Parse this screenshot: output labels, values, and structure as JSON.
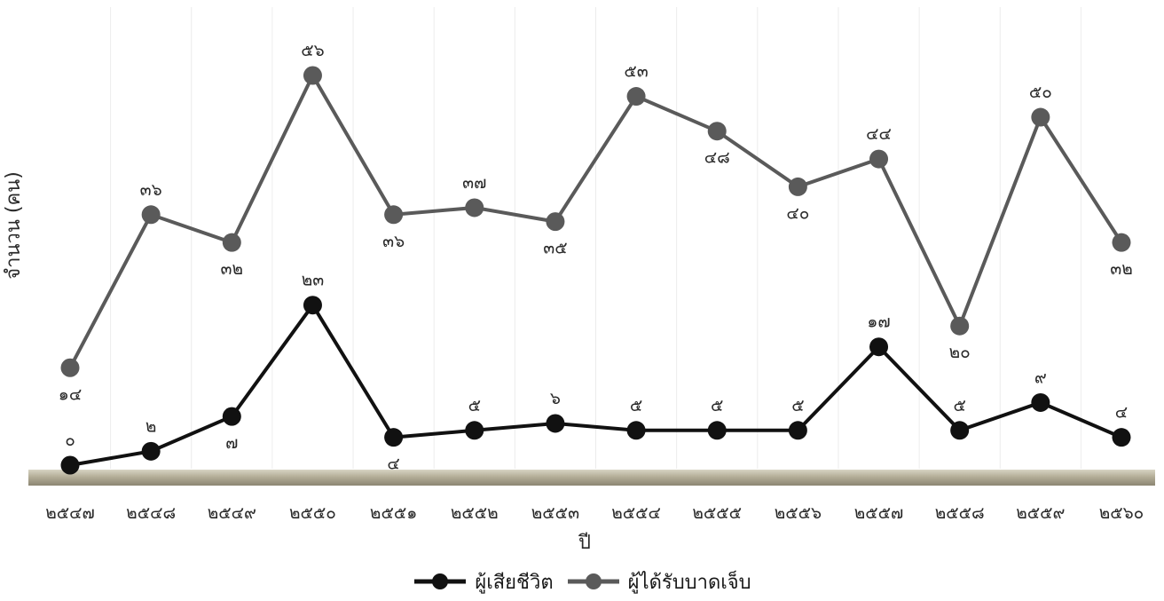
{
  "chart_data": {
    "type": "line",
    "xlabel": "ปี",
    "ylabel": "จำนวน (คน)",
    "categories": [
      "๒๕๔๗",
      "๒๕๔๘",
      "๒๕๔๙",
      "๒๕๕๐",
      "๒๕๕๑",
      "๒๕๕๒",
      "๒๕๕๓",
      "๒๕๕๔",
      "๒๕๕๕",
      "๒๕๕๖",
      "๒๕๕๗",
      "๒๕๕๘",
      "๒๕๕๙",
      "๒๕๖๐"
    ],
    "series": [
      {
        "name": "ผู้เสียชีวิต",
        "color": "#111111",
        "values": [
          0,
          2,
          7,
          23,
          4,
          5,
          6,
          5,
          5,
          5,
          17,
          5,
          9,
          4
        ],
        "labels": [
          "๐",
          "๒",
          "๗",
          "๒๓",
          "๔",
          "๕",
          "๖",
          "๕",
          "๕",
          "๕",
          "๑๗",
          "๕",
          "๙",
          "๔"
        ]
      },
      {
        "name": "ผู้ได้รับบาดเจ็บ",
        "color": "#5a5a5a",
        "values": [
          14,
          36,
          32,
          56,
          36,
          37,
          35,
          53,
          48,
          40,
          44,
          20,
          50,
          32
        ],
        "labels": [
          "๑๔",
          "๓๖",
          "๓๒",
          "๕๖",
          "๓๖",
          "๓๗",
          "๓๕",
          "๕๓",
          "๔๘",
          "๔๐",
          "๔๔",
          "๒๐",
          "๕๐",
          "๓๒"
        ]
      }
    ],
    "ylim": [
      0,
      60
    ],
    "grid": "vertical",
    "legend": "bottom-center"
  }
}
